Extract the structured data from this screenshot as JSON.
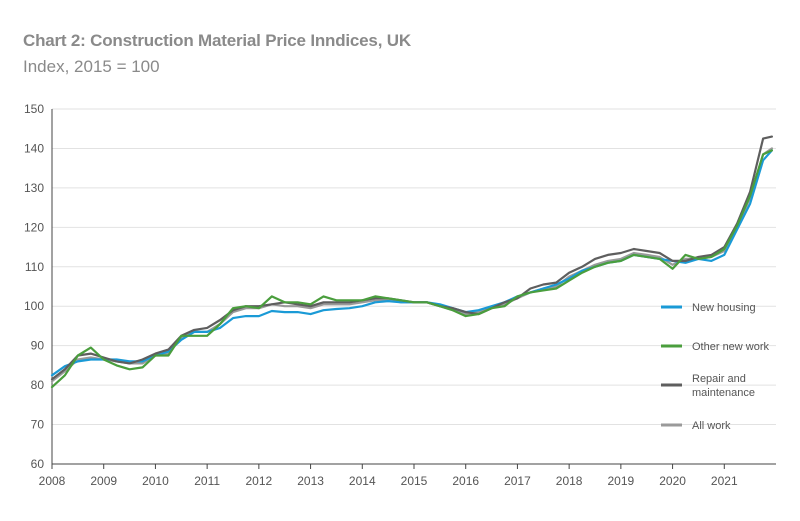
{
  "header": {
    "title": "Chart 2: Construction Material Price Inndices, UK",
    "subtitle": "Index, 2015 = 100"
  },
  "colors": {
    "new_housing": "#1a9ad6",
    "other_new_work": "#4a9e3d",
    "repair_and_maintenance": "#5e5e5e",
    "all_work": "#9a9a9a",
    "grid": "#e2e2e2",
    "axis": "#444444"
  },
  "chart_data": {
    "type": "line",
    "title": "Chart 2: Construction Material Price Inndices, UK",
    "subtitle": "Index, 2015 = 100",
    "xlabel": "",
    "ylabel": "",
    "xlim": [
      2008.0,
      2022.0
    ],
    "ylim": [
      60,
      150
    ],
    "yticks": [
      60,
      70,
      80,
      90,
      100,
      110,
      120,
      130,
      140,
      150
    ],
    "xticks": [
      2008,
      2009,
      2010,
      2011,
      2012,
      2013,
      2014,
      2015,
      2016,
      2017,
      2018,
      2019,
      2020,
      2021
    ],
    "grid": "horizontal",
    "legend_position": "right",
    "legend": [
      {
        "key": "new_housing",
        "label": "New housing"
      },
      {
        "key": "other_new_work",
        "label": "Other new work"
      },
      {
        "key": "repair_and_maintenance",
        "label": "Repair and maintenance",
        "lines": [
          "Repair and",
          "maintenance"
        ]
      },
      {
        "key": "all_work",
        "label": "All work"
      }
    ],
    "series": [
      {
        "key": "new_housing",
        "name": "New housing",
        "points": [
          [
            2008.0,
            82.5
          ],
          [
            2008.25,
            84.8
          ],
          [
            2008.5,
            86.0
          ],
          [
            2008.75,
            86.5
          ],
          [
            2009.0,
            86.5
          ],
          [
            2009.25,
            86.5
          ],
          [
            2009.5,
            86.0
          ],
          [
            2009.75,
            86.0
          ],
          [
            2010.0,
            87.5
          ],
          [
            2010.25,
            88.5
          ],
          [
            2010.5,
            91.5
          ],
          [
            2010.75,
            93.5
          ],
          [
            2011.0,
            93.5
          ],
          [
            2011.25,
            94.5
          ],
          [
            2011.5,
            97.0
          ],
          [
            2011.75,
            97.5
          ],
          [
            2012.0,
            97.5
          ],
          [
            2012.25,
            98.8
          ],
          [
            2012.5,
            98.5
          ],
          [
            2012.75,
            98.5
          ],
          [
            2013.0,
            98.0
          ],
          [
            2013.25,
            99.0
          ],
          [
            2013.5,
            99.3
          ],
          [
            2013.75,
            99.5
          ],
          [
            2014.0,
            100.0
          ],
          [
            2014.25,
            101.0
          ],
          [
            2014.5,
            101.3
          ],
          [
            2014.75,
            101.0
          ],
          [
            2015.0,
            101.0
          ],
          [
            2015.25,
            101.0
          ],
          [
            2015.5,
            100.5
          ],
          [
            2015.75,
            99.5
          ],
          [
            2016.0,
            98.5
          ],
          [
            2016.25,
            99.0
          ],
          [
            2016.5,
            100.0
          ],
          [
            2016.75,
            101.0
          ],
          [
            2017.0,
            102.5
          ],
          [
            2017.25,
            103.5
          ],
          [
            2017.5,
            104.5
          ],
          [
            2017.75,
            105.5
          ],
          [
            2018.0,
            107.0
          ],
          [
            2018.25,
            109.0
          ],
          [
            2018.5,
            110.0
          ],
          [
            2018.75,
            111.0
          ],
          [
            2019.0,
            111.5
          ],
          [
            2019.25,
            113.0
          ],
          [
            2019.5,
            112.5
          ],
          [
            2019.75,
            112.0
          ],
          [
            2020.0,
            111.5
          ],
          [
            2020.25,
            111.0
          ],
          [
            2020.5,
            112.0
          ],
          [
            2020.75,
            111.5
          ],
          [
            2021.0,
            113.0
          ],
          [
            2021.25,
            119.5
          ],
          [
            2021.5,
            126.0
          ],
          [
            2021.75,
            137.0
          ],
          [
            2021.92,
            139.5
          ]
        ]
      },
      {
        "key": "other_new_work",
        "name": "Other new work",
        "points": [
          [
            2008.0,
            79.5
          ],
          [
            2008.25,
            82.5
          ],
          [
            2008.5,
            87.5
          ],
          [
            2008.75,
            89.5
          ],
          [
            2009.0,
            86.5
          ],
          [
            2009.25,
            85.0
          ],
          [
            2009.5,
            84.0
          ],
          [
            2009.75,
            84.5
          ],
          [
            2010.0,
            87.5
          ],
          [
            2010.25,
            87.5
          ],
          [
            2010.5,
            92.5
          ],
          [
            2010.75,
            92.5
          ],
          [
            2011.0,
            92.5
          ],
          [
            2011.25,
            95.5
          ],
          [
            2011.5,
            99.5
          ],
          [
            2011.75,
            100.0
          ],
          [
            2012.0,
            99.5
          ],
          [
            2012.25,
            102.5
          ],
          [
            2012.5,
            101.0
          ],
          [
            2012.75,
            101.0
          ],
          [
            2013.0,
            100.5
          ],
          [
            2013.25,
            102.5
          ],
          [
            2013.5,
            101.5
          ],
          [
            2013.75,
            101.5
          ],
          [
            2014.0,
            101.5
          ],
          [
            2014.25,
            102.5
          ],
          [
            2014.5,
            102.0
          ],
          [
            2014.75,
            101.5
          ],
          [
            2015.0,
            101.0
          ],
          [
            2015.25,
            101.0
          ],
          [
            2015.5,
            100.0
          ],
          [
            2015.75,
            99.0
          ],
          [
            2016.0,
            97.5
          ],
          [
            2016.25,
            98.0
          ],
          [
            2016.5,
            99.5
          ],
          [
            2016.75,
            100.0
          ],
          [
            2017.0,
            102.5
          ],
          [
            2017.25,
            103.5
          ],
          [
            2017.5,
            104.0
          ],
          [
            2017.75,
            104.5
          ],
          [
            2018.0,
            106.5
          ],
          [
            2018.25,
            108.5
          ],
          [
            2018.5,
            110.0
          ],
          [
            2018.75,
            111.0
          ],
          [
            2019.0,
            111.5
          ],
          [
            2019.25,
            113.0
          ],
          [
            2019.5,
            112.5
          ],
          [
            2019.75,
            112.0
          ],
          [
            2020.0,
            109.5
          ],
          [
            2020.25,
            113.0
          ],
          [
            2020.5,
            112.0
          ],
          [
            2020.75,
            112.5
          ],
          [
            2021.0,
            114.5
          ],
          [
            2021.25,
            120.5
          ],
          [
            2021.5,
            128.0
          ],
          [
            2021.75,
            138.5
          ],
          [
            2021.92,
            139.5
          ]
        ]
      },
      {
        "key": "repair_and_maintenance",
        "name": "Repair and maintenance",
        "points": [
          [
            2008.0,
            81.5
          ],
          [
            2008.25,
            84.0
          ],
          [
            2008.5,
            87.5
          ],
          [
            2008.75,
            88.0
          ],
          [
            2009.0,
            87.0
          ],
          [
            2009.25,
            86.0
          ],
          [
            2009.5,
            85.5
          ],
          [
            2009.75,
            86.5
          ],
          [
            2010.0,
            88.0
          ],
          [
            2010.25,
            89.0
          ],
          [
            2010.5,
            92.5
          ],
          [
            2010.75,
            94.0
          ],
          [
            2011.0,
            94.5
          ],
          [
            2011.25,
            96.5
          ],
          [
            2011.5,
            99.0
          ],
          [
            2011.75,
            100.0
          ],
          [
            2012.0,
            100.0
          ],
          [
            2012.25,
            100.5
          ],
          [
            2012.5,
            101.0
          ],
          [
            2012.75,
            100.5
          ],
          [
            2013.0,
            100.0
          ],
          [
            2013.25,
            101.0
          ],
          [
            2013.5,
            101.0
          ],
          [
            2013.75,
            101.0
          ],
          [
            2014.0,
            101.5
          ],
          [
            2014.25,
            102.0
          ],
          [
            2014.5,
            102.0
          ],
          [
            2014.75,
            101.5
          ],
          [
            2015.0,
            101.0
          ],
          [
            2015.25,
            101.0
          ],
          [
            2015.5,
            100.0
          ],
          [
            2015.75,
            99.5
          ],
          [
            2016.0,
            98.5
          ],
          [
            2016.25,
            98.0
          ],
          [
            2016.5,
            99.5
          ],
          [
            2016.75,
            101.0
          ],
          [
            2017.0,
            102.0
          ],
          [
            2017.25,
            104.5
          ],
          [
            2017.5,
            105.5
          ],
          [
            2017.75,
            106.0
          ],
          [
            2018.0,
            108.5
          ],
          [
            2018.25,
            110.0
          ],
          [
            2018.5,
            112.0
          ],
          [
            2018.75,
            113.0
          ],
          [
            2019.0,
            113.5
          ],
          [
            2019.25,
            114.5
          ],
          [
            2019.5,
            114.0
          ],
          [
            2019.75,
            113.5
          ],
          [
            2020.0,
            111.5
          ],
          [
            2020.25,
            111.5
          ],
          [
            2020.5,
            112.5
          ],
          [
            2020.75,
            113.0
          ],
          [
            2021.0,
            115.0
          ],
          [
            2021.25,
            121.0
          ],
          [
            2021.5,
            129.0
          ],
          [
            2021.75,
            142.5
          ],
          [
            2021.92,
            143.0
          ]
        ]
      },
      {
        "key": "all_work",
        "name": "All work",
        "points": [
          [
            2008.0,
            81.0
          ],
          [
            2008.25,
            83.5
          ],
          [
            2008.5,
            86.5
          ],
          [
            2008.75,
            87.0
          ],
          [
            2009.0,
            86.5
          ],
          [
            2009.25,
            86.0
          ],
          [
            2009.5,
            85.5
          ],
          [
            2009.75,
            85.5
          ],
          [
            2010.0,
            87.5
          ],
          [
            2010.25,
            88.0
          ],
          [
            2010.5,
            92.0
          ],
          [
            2010.75,
            93.5
          ],
          [
            2011.0,
            93.5
          ],
          [
            2011.25,
            95.5
          ],
          [
            2011.5,
            98.5
          ],
          [
            2011.75,
            99.5
          ],
          [
            2012.0,
            99.5
          ],
          [
            2012.25,
            100.5
          ],
          [
            2012.5,
            100.0
          ],
          [
            2012.75,
            100.0
          ],
          [
            2013.0,
            99.5
          ],
          [
            2013.25,
            100.5
          ],
          [
            2013.5,
            100.5
          ],
          [
            2013.75,
            100.5
          ],
          [
            2014.0,
            101.0
          ],
          [
            2014.25,
            101.5
          ],
          [
            2014.5,
            101.5
          ],
          [
            2014.75,
            101.0
          ],
          [
            2015.0,
            101.0
          ],
          [
            2015.25,
            101.0
          ],
          [
            2015.5,
            100.0
          ],
          [
            2015.75,
            99.0
          ],
          [
            2016.0,
            98.0
          ],
          [
            2016.25,
            98.5
          ],
          [
            2016.5,
            99.5
          ],
          [
            2016.75,
            100.5
          ],
          [
            2017.0,
            102.0
          ],
          [
            2017.25,
            103.5
          ],
          [
            2017.5,
            104.5
          ],
          [
            2017.75,
            105.0
          ],
          [
            2018.0,
            107.5
          ],
          [
            2018.25,
            109.0
          ],
          [
            2018.5,
            110.5
          ],
          [
            2018.75,
            111.5
          ],
          [
            2019.0,
            112.0
          ],
          [
            2019.25,
            113.5
          ],
          [
            2019.5,
            113.0
          ],
          [
            2019.75,
            112.5
          ],
          [
            2020.0,
            110.5
          ],
          [
            2020.25,
            112.0
          ],
          [
            2020.5,
            112.0
          ],
          [
            2020.75,
            112.5
          ],
          [
            2021.0,
            114.0
          ],
          [
            2021.25,
            120.0
          ],
          [
            2021.5,
            127.5
          ],
          [
            2021.75,
            138.5
          ],
          [
            2021.92,
            140.0
          ]
        ]
      }
    ]
  }
}
